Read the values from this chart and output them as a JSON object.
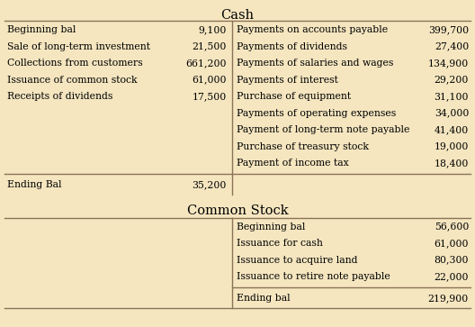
{
  "background_color": "#f5e6c0",
  "line_color": "#8B7355",
  "title_cash": "Cash",
  "title_stock": "Common Stock",
  "cash_left": [
    [
      "Beginning bal",
      "9,100"
    ],
    [
      "Sale of long-term investment",
      "21,500"
    ],
    [
      "Collections from customers",
      "661,200"
    ],
    [
      "Issuance of common stock",
      "61,000"
    ],
    [
      "Receipts of dividends",
      "17,500"
    ]
  ],
  "cash_right": [
    [
      "Payments on accounts payable",
      "399,700"
    ],
    [
      "Payments of dividends",
      "27,400"
    ],
    [
      "Payments of salaries and wages",
      "134,900"
    ],
    [
      "Payments of interest",
      "29,200"
    ],
    [
      "Purchase of equipment",
      "31,100"
    ],
    [
      "Payments of operating expenses",
      "34,000"
    ],
    [
      "Payment of long-term note payable",
      "41,400"
    ],
    [
      "Purchase of treasury stock",
      "19,000"
    ],
    [
      "Payment of income tax",
      "18,400"
    ]
  ],
  "cash_ending_label": "Ending Bal",
  "cash_ending_value": "35,200",
  "stock_right": [
    [
      "Beginning bal",
      "56,600"
    ],
    [
      "Issuance for cash",
      "61,000"
    ],
    [
      "Issuance to acquire land",
      "80,300"
    ],
    [
      "Issuance to retire note payable",
      "22,000"
    ]
  ],
  "stock_ending_label": "Ending bal",
  "stock_ending_value": "219,900",
  "font_size": 7.8,
  "title_font_size": 10.5
}
